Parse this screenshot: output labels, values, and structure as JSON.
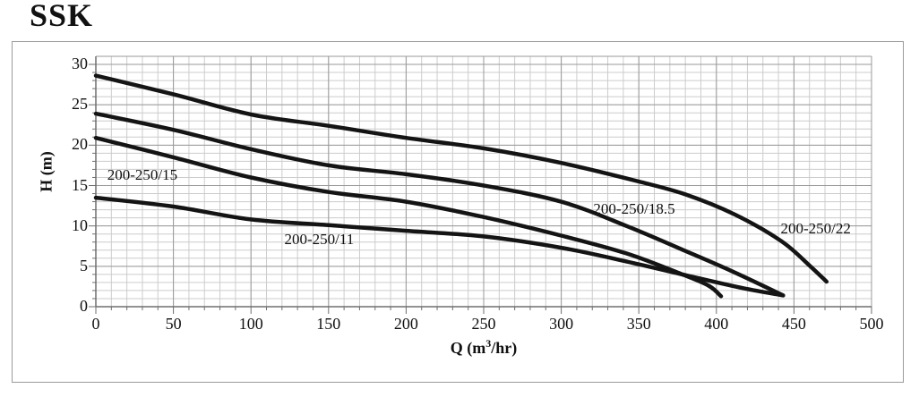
{
  "title": "SSK",
  "chart_data": {
    "type": "line",
    "title": "SSK",
    "xlabel": {
      "prefix": "Q (m",
      "sup": "3",
      "suffix": "/hr)"
    },
    "ylabel": "H (m)",
    "xlim": [
      0,
      500
    ],
    "ylim": [
      0,
      30
    ],
    "x_ticks": [
      0,
      50,
      100,
      150,
      200,
      250,
      300,
      350,
      400,
      450,
      500
    ],
    "y_ticks": [
      0,
      5,
      10,
      15,
      20,
      25,
      30
    ],
    "grid": {
      "minor_x_step": 10,
      "minor_y_step": 1,
      "major_x_step": 50,
      "major_y_step": 5,
      "minor_color": "#cccccc",
      "major_color": "#9a9a9a"
    },
    "axis_color": "#6e6e6e",
    "curve_color": "#141414",
    "legend_position": "inline-labels",
    "series": [
      {
        "name": "200-250/22",
        "label": "200-250/22",
        "label_pos": {
          "q": 464,
          "h": 9.6
        },
        "points": [
          [
            0,
            28.6
          ],
          [
            50,
            26.3
          ],
          [
            100,
            23.8
          ],
          [
            150,
            22.4
          ],
          [
            200,
            20.9
          ],
          [
            250,
            19.6
          ],
          [
            300,
            17.8
          ],
          [
            350,
            15.5
          ],
          [
            380,
            13.9
          ],
          [
            412,
            11.4
          ],
          [
            442,
            8.1
          ],
          [
            460,
            5.1
          ],
          [
            471,
            3.1
          ]
        ]
      },
      {
        "name": "200-250/18.5",
        "label": "200-250/18.5",
        "label_pos": {
          "q": 347,
          "h": 12.1
        },
        "points": [
          [
            0,
            23.9
          ],
          [
            50,
            21.9
          ],
          [
            100,
            19.5
          ],
          [
            150,
            17.5
          ],
          [
            200,
            16.4
          ],
          [
            250,
            15.0
          ],
          [
            300,
            13.0
          ],
          [
            342,
            10.0
          ],
          [
            380,
            6.9
          ],
          [
            410,
            4.4
          ],
          [
            443,
            1.4
          ]
        ]
      },
      {
        "name": "200-250/15",
        "label": "200-250/15",
        "label_pos": {
          "q": 30,
          "h": 16.3
        },
        "points": [
          [
            0,
            20.9
          ],
          [
            50,
            18.5
          ],
          [
            100,
            16.0
          ],
          [
            150,
            14.2
          ],
          [
            200,
            13.0
          ],
          [
            250,
            11.1
          ],
          [
            300,
            8.8
          ],
          [
            342,
            6.6
          ],
          [
            378,
            4.0
          ],
          [
            395,
            2.6
          ],
          [
            403,
            1.3
          ]
        ]
      },
      {
        "name": "200-250/11",
        "label": "200-250/11",
        "label_pos": {
          "q": 144,
          "h": 8.3
        },
        "points": [
          [
            0,
            13.5
          ],
          [
            50,
            12.4
          ],
          [
            100,
            10.8
          ],
          [
            150,
            10.1
          ],
          [
            200,
            9.4
          ],
          [
            250,
            8.7
          ],
          [
            300,
            7.3
          ],
          [
            342,
            5.6
          ],
          [
            378,
            4.0
          ],
          [
            417,
            2.3
          ],
          [
            443,
            1.4
          ]
        ]
      }
    ]
  }
}
